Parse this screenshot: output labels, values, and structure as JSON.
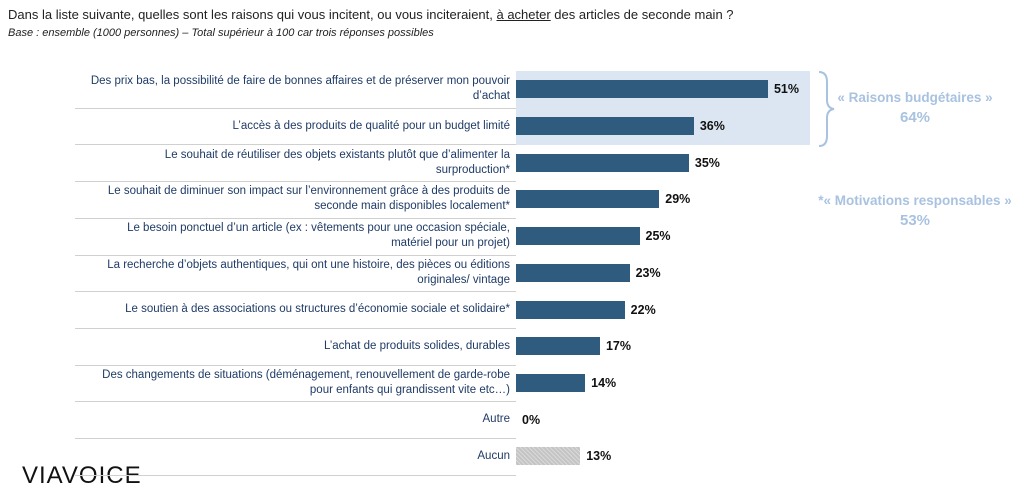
{
  "chart_data": {
    "type": "hbar",
    "title": [
      "Dans la liste suivante, quelles sont les raisons qui vous incitent, ou vous inciteraient, ",
      "à acheter",
      " des articles de seconde main ?"
    ],
    "subtitle": "Base : ensemble (1000 personnes) – Total supérieur à 100 car trois réponses possibles",
    "categories": [
      "Des prix bas, la possibilité de faire de bonnes affaires et de préserver mon pouvoir d’achat",
      "L’accès à des produits de qualité pour un budget limité",
      "Le souhait de réutiliser des objets existants plutôt que d’alimenter la surproduction*",
      "Le souhait de diminuer son impact sur l’environnement grâce à des produits de seconde main disponibles localement*",
      "Le besoin ponctuel d’un article (ex : vêtements pour une occasion spéciale, matériel pour un projet)",
      "La recherche d’objets authentiques, qui ont une histoire, des pièces ou éditions originales/ vintage",
      "Le soutien à des associations ou structures d’économie sociale et solidaire*",
      "L’achat de produits solides, durables",
      "Des changements de situations (déménagement, renouvellement de garde-robe pour enfants qui grandissent vite etc…)",
      "Autre",
      "Aucun"
    ],
    "values": [
      51,
      36,
      35,
      29,
      25,
      23,
      22,
      17,
      14,
      0,
      13
    ],
    "value_labels": [
      "51%",
      "36%",
      "35%",
      "29%",
      "25%",
      "23%",
      "22%",
      "17%",
      "14%",
      "0%",
      "13%"
    ],
    "colors": [
      "#2e5b7e",
      "#2e5b7e",
      "#2e5b7e",
      "#2e5b7e",
      "#2e5b7e",
      "#2e5b7e",
      "#2e5b7e",
      "#2e5b7e",
      "#2e5b7e",
      "#2e5b7e",
      "#c4c4c4"
    ],
    "xlim": [
      0,
      100
    ],
    "annotations": [
      {
        "label": "« Raisons budgétaires »",
        "value_label": "64%"
      },
      {
        "label": "*« Motivations responsables »",
        "value_label": "53%"
      }
    ],
    "logo": "VIAVOICE"
  }
}
